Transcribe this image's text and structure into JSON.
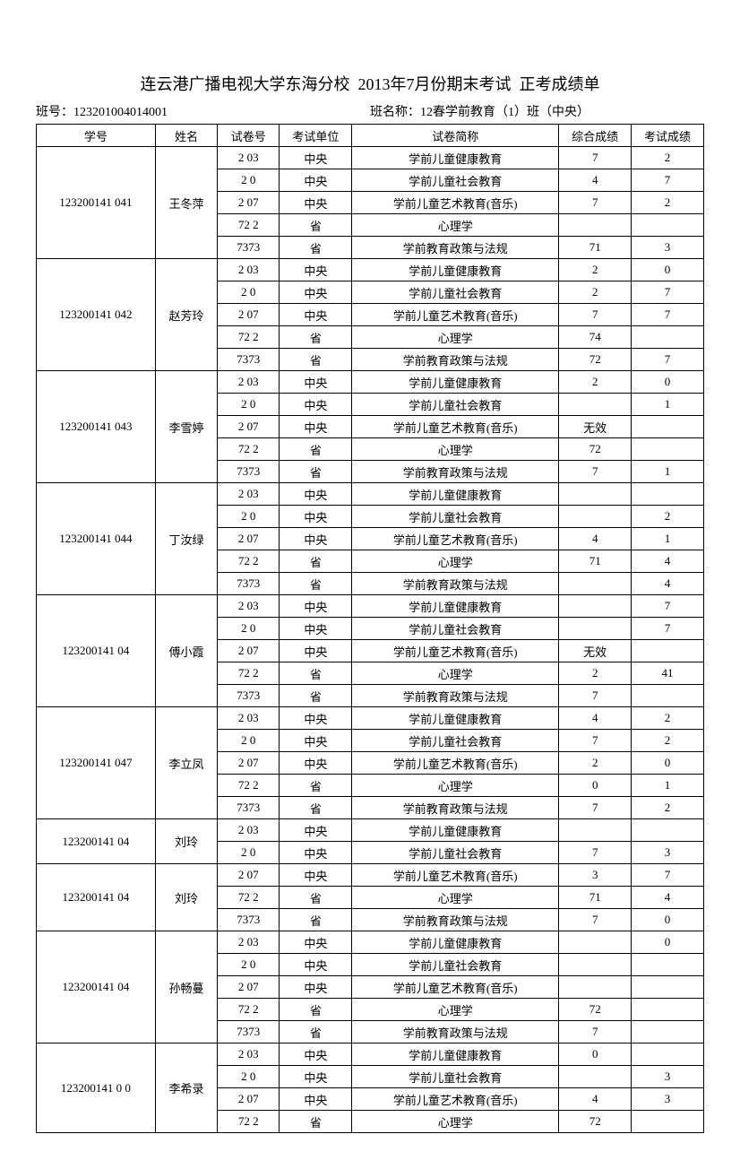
{
  "title": "连云港广播电视大学东海分校  2013年7月份期末考试  正考成绩单",
  "class_no_label": "班号：",
  "class_no": "123201004014001",
  "class_name_label": "班名称：",
  "class_name": "12春学前教育（1）班（中央）",
  "columns": [
    "学号",
    "姓名",
    "试卷号",
    "考试单位",
    "试卷简称",
    "综合成绩",
    "考试成绩"
  ],
  "students": [
    {
      "id": "123200141  041",
      "name": "王冬萍",
      "rows": [
        {
          "paper": "2  03",
          "unit": "中央",
          "subject": "学前儿童健康教育",
          "s1": "7",
          "s2": "2"
        },
        {
          "paper": "2  0",
          "unit": "中央",
          "subject": "学前儿童社会教育",
          "s1": "4",
          "s2": "7"
        },
        {
          "paper": "2  07",
          "unit": "中央",
          "subject": "学前儿童艺术教育(音乐)",
          "s1": "7",
          "s2": "2"
        },
        {
          "paper": "72  2",
          "unit": "省",
          "subject": "心理学",
          "s1": "",
          "s2": ""
        },
        {
          "paper": "7373",
          "unit": "省",
          "subject": "学前教育政策与法规",
          "s1": "71",
          "s2": "3"
        }
      ]
    },
    {
      "id": "123200141  042",
      "name": "赵芳玲",
      "rows": [
        {
          "paper": "2  03",
          "unit": "中央",
          "subject": "学前儿童健康教育",
          "s1": "2",
          "s2": "0"
        },
        {
          "paper": "2  0",
          "unit": "中央",
          "subject": "学前儿童社会教育",
          "s1": "2",
          "s2": "7"
        },
        {
          "paper": "2  07",
          "unit": "中央",
          "subject": "学前儿童艺术教育(音乐)",
          "s1": "7",
          "s2": "7"
        },
        {
          "paper": "72  2",
          "unit": "省",
          "subject": "心理学",
          "s1": "74",
          "s2": ""
        },
        {
          "paper": "7373",
          "unit": "省",
          "subject": "学前教育政策与法规",
          "s1": "72",
          "s2": "7"
        }
      ]
    },
    {
      "id": "123200141  043",
      "name": "李雪婷",
      "rows": [
        {
          "paper": "2  03",
          "unit": "中央",
          "subject": "学前儿童健康教育",
          "s1": "2",
          "s2": "0"
        },
        {
          "paper": "2  0",
          "unit": "中央",
          "subject": "学前儿童社会教育",
          "s1": "",
          "s2": "1"
        },
        {
          "paper": "2  07",
          "unit": "中央",
          "subject": "学前儿童艺术教育(音乐)",
          "s1": "无效",
          "s2": ""
        },
        {
          "paper": "72  2",
          "unit": "省",
          "subject": "心理学",
          "s1": "72",
          "s2": ""
        },
        {
          "paper": "7373",
          "unit": "省",
          "subject": "学前教育政策与法规",
          "s1": "7",
          "s2": "1"
        }
      ]
    },
    {
      "id": "123200141  044",
      "name": "丁汝绿",
      "rows": [
        {
          "paper": "2  03",
          "unit": "中央",
          "subject": "学前儿童健康教育",
          "s1": "",
          "s2": ""
        },
        {
          "paper": "2  0",
          "unit": "中央",
          "subject": "学前儿童社会教育",
          "s1": "",
          "s2": "2"
        },
        {
          "paper": "2  07",
          "unit": "中央",
          "subject": "学前儿童艺术教育(音乐)",
          "s1": "4",
          "s2": "1"
        },
        {
          "paper": "72  2",
          "unit": "省",
          "subject": "心理学",
          "s1": "71",
          "s2": "4"
        },
        {
          "paper": "7373",
          "unit": "省",
          "subject": "学前教育政策与法规",
          "s1": "",
          "s2": "4"
        }
      ]
    },
    {
      "id": "123200141  04",
      "name": "傅小霞",
      "rows": [
        {
          "paper": "2  03",
          "unit": "中央",
          "subject": "学前儿童健康教育",
          "s1": "",
          "s2": "7"
        },
        {
          "paper": "2  0",
          "unit": "中央",
          "subject": "学前儿童社会教育",
          "s1": "",
          "s2": "7"
        },
        {
          "paper": "2  07",
          "unit": "中央",
          "subject": "学前儿童艺术教育(音乐)",
          "s1": "无效",
          "s2": ""
        },
        {
          "paper": "72  2",
          "unit": "省",
          "subject": "心理学",
          "s1": "2",
          "s2": "41"
        },
        {
          "paper": "7373",
          "unit": "省",
          "subject": "学前教育政策与法规",
          "s1": "7",
          "s2": ""
        }
      ]
    },
    {
      "id": "123200141  047",
      "name": "李立凤",
      "rows": [
        {
          "paper": "2  03",
          "unit": "中央",
          "subject": "学前儿童健康教育",
          "s1": "4",
          "s2": "2"
        },
        {
          "paper": "2  0",
          "unit": "中央",
          "subject": "学前儿童社会教育",
          "s1": "7",
          "s2": "2"
        },
        {
          "paper": "2  07",
          "unit": "中央",
          "subject": "学前儿童艺术教育(音乐)",
          "s1": "2",
          "s2": "0"
        },
        {
          "paper": "72  2",
          "unit": "省",
          "subject": "心理学",
          "s1": "0",
          "s2": "1"
        },
        {
          "paper": "7373",
          "unit": "省",
          "subject": "学前教育政策与法规",
          "s1": "7",
          "s2": "2"
        }
      ]
    },
    {
      "id": "123200141  04",
      "name": "刘玲",
      "rows": [
        {
          "paper": "2  03",
          "unit": "中央",
          "subject": "学前儿童健康教育",
          "s1": "",
          "s2": ""
        },
        {
          "paper": "2  0",
          "unit": "中央",
          "subject": "学前儿童社会教育",
          "s1": "7",
          "s2": "3"
        }
      ]
    },
    {
      "id": "123200141  04",
      "name": "刘玲",
      "rows": [
        {
          "paper": "2  07",
          "unit": "中央",
          "subject": "学前儿童艺术教育(音乐)",
          "s1": "3",
          "s2": "7"
        },
        {
          "paper": "72  2",
          "unit": "省",
          "subject": "心理学",
          "s1": "71",
          "s2": "4"
        },
        {
          "paper": "7373",
          "unit": "省",
          "subject": "学前教育政策与法规",
          "s1": "7",
          "s2": "0"
        }
      ]
    },
    {
      "id": "123200141  04",
      "name": "孙畅蔓",
      "rows": [
        {
          "paper": "2  03",
          "unit": "中央",
          "subject": "学前儿童健康教育",
          "s1": "",
          "s2": "0"
        },
        {
          "paper": "2  0",
          "unit": "中央",
          "subject": "学前儿童社会教育",
          "s1": "",
          "s2": ""
        },
        {
          "paper": "2  07",
          "unit": "中央",
          "subject": "学前儿童艺术教育(音乐)",
          "s1": "",
          "s2": ""
        },
        {
          "paper": "72  2",
          "unit": "省",
          "subject": "心理学",
          "s1": "72",
          "s2": ""
        },
        {
          "paper": "7373",
          "unit": "省",
          "subject": "学前教育政策与法规",
          "s1": "7",
          "s2": ""
        }
      ]
    },
    {
      "id": "123200141  0  0",
      "name": "李希录",
      "rows": [
        {
          "paper": "2  03",
          "unit": "中央",
          "subject": "学前儿童健康教育",
          "s1": "0",
          "s2": ""
        },
        {
          "paper": "2  0",
          "unit": "中央",
          "subject": "学前儿童社会教育",
          "s1": "",
          "s2": "3"
        },
        {
          "paper": "2  07",
          "unit": "中央",
          "subject": "学前儿童艺术教育(音乐)",
          "s1": "4",
          "s2": "3"
        },
        {
          "paper": "72  2",
          "unit": "省",
          "subject": "心理学",
          "s1": "72",
          "s2": ""
        }
      ]
    }
  ]
}
